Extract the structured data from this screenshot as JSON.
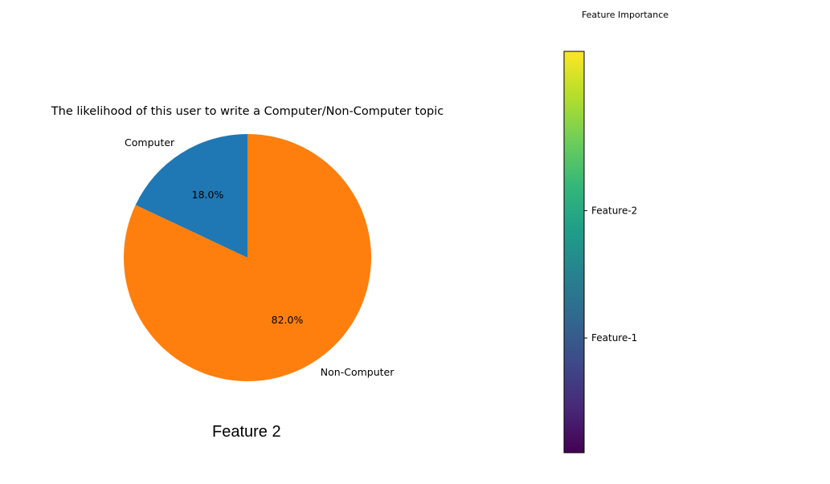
{
  "caption": "Feature 2",
  "chart_data": [
    {
      "type": "pie",
      "title": "The likelihood of this user to write a Computer/Non-Computer topic",
      "categories": [
        "Computer",
        "Non-Computer"
      ],
      "values": [
        18.0,
        82.0
      ],
      "value_labels": [
        "18.0%",
        "82.0%"
      ],
      "colors": [
        "#1f77b4",
        "#ff7f0e"
      ],
      "start_angle_deg": 90,
      "direction": "counterclockwise"
    },
    {
      "type": "colorbar",
      "title": "Feature Importance",
      "colormap": "viridis",
      "colors": [
        "#440154",
        "#482878",
        "#3e4989",
        "#31688e",
        "#26828e",
        "#1f9e89",
        "#35b779",
        "#6ece58",
        "#b5de2b",
        "#fde725"
      ],
      "tick_labels": [
        "Feature-1",
        "Feature-2"
      ],
      "tick_values": [
        1,
        2
      ],
      "range": [
        0.1,
        3.25
      ]
    }
  ]
}
